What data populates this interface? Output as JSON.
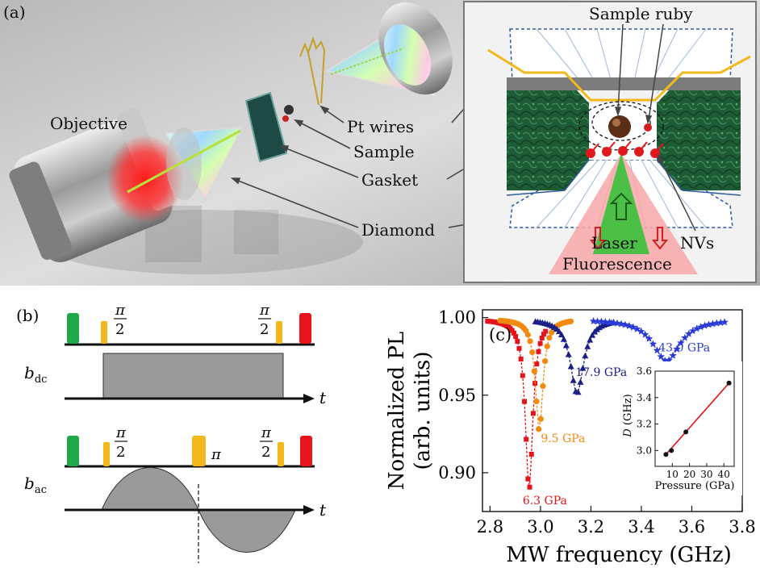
{
  "panel_a": {
    "label": "(a)",
    "labels": {
      "objective": "Objective",
      "pt_wires": "Pt wires",
      "sample": "Sample",
      "gasket": "Gasket",
      "diamond": "Diamond"
    },
    "inset": {
      "sample_ruby": "Sample ruby",
      "laser": "Laser",
      "fluorescence": "Fluorescence",
      "nvs": "NVs"
    }
  },
  "panel_b": {
    "label": "(b)",
    "dc_label": "b",
    "dc_sub": "dc",
    "ac_label": "b",
    "ac_sub": "ac",
    "time": "t",
    "pi": "π",
    "half_num": "π",
    "half_den": "2",
    "colors": {
      "init": "#1fa84a",
      "mw": "#f3b81b",
      "readout": "#e8141d",
      "field": "#9a9a9a"
    }
  },
  "panel_c": {
    "label": "(c)",
    "chart_data": [
      {
        "type": "scatter",
        "xlabel": "MW frequency (GHz)",
        "ylabel_line1": "Normalized PL",
        "ylabel_line2": "(arb. units)",
        "xlim": [
          2.77,
          3.8
        ],
        "ylim": [
          0.875,
          1.005
        ],
        "xticks": [
          2.8,
          3.0,
          3.2,
          3.4,
          3.6,
          3.8
        ],
        "xtick_labels": [
          "2.8",
          "3.0",
          "3.2",
          "3.4",
          "3.6",
          "3.8"
        ],
        "yticks": [
          0.9,
          0.95,
          1.0
        ],
        "ytick_labels": [
          "0.90",
          "0.95",
          "1.00"
        ],
        "series": [
          {
            "name": "6.3 GPa",
            "color": "#e5141a",
            "marker": "square",
            "dip_center": 2.955,
            "depth": 0.11,
            "width": 0.018,
            "x_range": [
              2.79,
              3.02
            ],
            "label": "6.3 GPa"
          },
          {
            "name": "9.5 GPa",
            "color": "#f28a10",
            "marker": "circle",
            "dip_center": 2.995,
            "depth": 0.072,
            "width": 0.018,
            "x_range": [
              2.84,
              3.12
            ],
            "label": "9.5 GPa"
          },
          {
            "name": "17.9 GPa",
            "color": "#1a1f86",
            "marker": "triangle",
            "dip_center": 3.145,
            "depth": 0.048,
            "width": 0.032,
            "x_range": [
              2.98,
              3.29
            ],
            "label": "17.9 GPa"
          },
          {
            "name": "43.0 GPa",
            "color": "#2a3bd8",
            "marker": "star",
            "dip_center": 3.5,
            "depth": 0.027,
            "width": 0.065,
            "x_range": [
              3.21,
              3.73
            ],
            "label": "43.0 GPa"
          }
        ]
      },
      {
        "type": "line",
        "xlabel": "Pressure (GPa)",
        "ylabel_italic": "D",
        "ylabel_unit": "(GHz)",
        "xlim": [
          0,
          46
        ],
        "ylim": [
          2.88,
          3.6
        ],
        "xticks": [
          10,
          20,
          30,
          40
        ],
        "xtick_labels": [
          "10",
          "20",
          "30",
          "40"
        ],
        "yticks": [
          3.0,
          3.2,
          3.4,
          3.6
        ],
        "ytick_labels": [
          "3.0",
          "3.2",
          "3.4",
          "3.6"
        ],
        "points": [
          {
            "x": 6.3,
            "y": 2.97
          },
          {
            "x": 9.5,
            "y": 3.0
          },
          {
            "x": 17.9,
            "y": 3.14
          },
          {
            "x": 43.0,
            "y": 3.51
          }
        ],
        "fit_color": "#dd1111"
      }
    ]
  }
}
